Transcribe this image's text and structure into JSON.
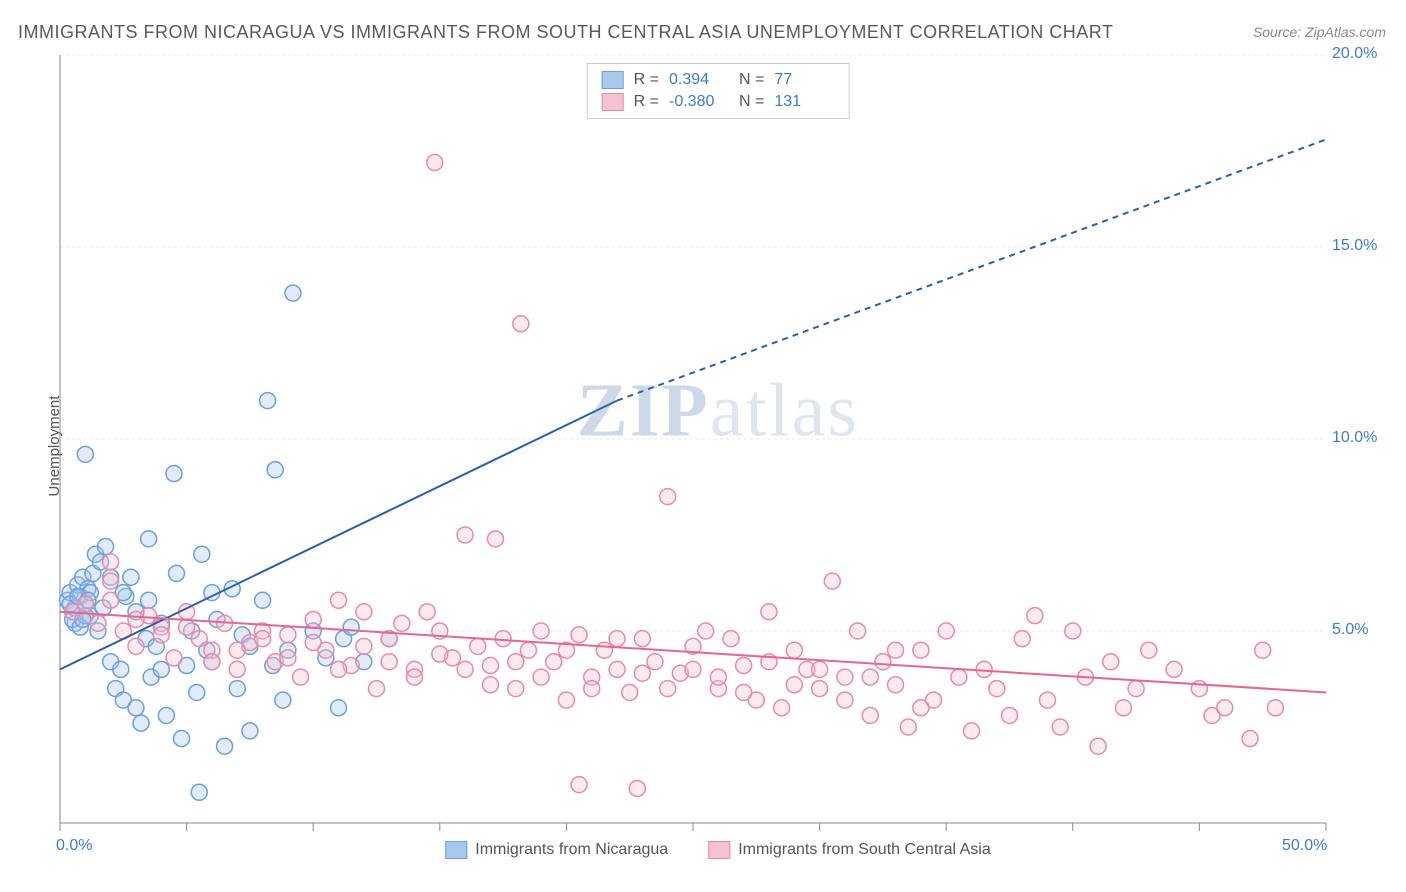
{
  "title": "IMMIGRANTS FROM NICARAGUA VS IMMIGRANTS FROM SOUTH CENTRAL ASIA UNEMPLOYMENT CORRELATION CHART",
  "source": "Source: ZipAtlas.com",
  "ylabel": "Unemployment",
  "watermark": {
    "bold": "ZIP",
    "light": "atlas"
  },
  "chart": {
    "type": "scatter",
    "xlim": [
      0,
      50
    ],
    "ylim": [
      0,
      20
    ],
    "xtick_positions": [
      0,
      5,
      10,
      15,
      20,
      25,
      30,
      35,
      40,
      45,
      50
    ],
    "ytick_positions": [
      0,
      5,
      10,
      15,
      20
    ],
    "xtick_labels_shown": {
      "0": "0.0%",
      "50": "50.0%"
    },
    "ytick_labels_shown": {
      "5": "5.0%",
      "10": "10.0%",
      "15": "15.0%",
      "20": "20.0%"
    },
    "axis_color": "#888888",
    "grid_color": "#e8e8e8",
    "grid_dash": "3,3",
    "background_color": "#ffffff",
    "tick_label_color": "#3d7cc9",
    "marker_radius": 8,
    "marker_stroke_width": 1.5,
    "marker_fill_opacity": 0.35
  },
  "series": [
    {
      "name": "Immigrants from Nicaragua",
      "color_fill": "#a8c8ec",
      "color_stroke": "#6ca0dc",
      "legend_R": "0.394",
      "legend_N": "77",
      "regression": {
        "x1": 0,
        "y1": 4.0,
        "x2_solid": 22,
        "y2_solid": 11.0,
        "x2_dashed": 50,
        "y2_dashed": 17.8,
        "stroke": "#2c5fa5",
        "stroke_width": 2
      },
      "points": [
        [
          0.3,
          5.8
        ],
        [
          0.4,
          6.0
        ],
        [
          0.5,
          5.5
        ],
        [
          0.6,
          5.2
        ],
        [
          0.7,
          6.2
        ],
        [
          0.8,
          5.9
        ],
        [
          0.9,
          6.4
        ],
        [
          1.0,
          5.7
        ],
        [
          1.1,
          6.1
        ],
        [
          1.2,
          5.4
        ],
        [
          1.3,
          6.5
        ],
        [
          1.4,
          7.0
        ],
        [
          1.5,
          5.0
        ],
        [
          1.6,
          6.8
        ],
        [
          1.8,
          7.2
        ],
        [
          1.0,
          9.6
        ],
        [
          2.0,
          4.2
        ],
        [
          2.2,
          3.5
        ],
        [
          2.4,
          4.0
        ],
        [
          2.5,
          3.2
        ],
        [
          2.6,
          5.9
        ],
        [
          2.8,
          6.4
        ],
        [
          3.0,
          3.0
        ],
        [
          3.2,
          2.6
        ],
        [
          3.4,
          4.8
        ],
        [
          3.5,
          7.4
        ],
        [
          3.6,
          3.8
        ],
        [
          3.8,
          4.6
        ],
        [
          4.0,
          5.2
        ],
        [
          4.2,
          2.8
        ],
        [
          4.5,
          9.1
        ],
        [
          4.6,
          6.5
        ],
        [
          4.8,
          2.2
        ],
        [
          5.0,
          4.1
        ],
        [
          5.2,
          5.0
        ],
        [
          5.4,
          3.4
        ],
        [
          5.6,
          7.0
        ],
        [
          5.8,
          4.5
        ],
        [
          5.5,
          0.8
        ],
        [
          6.0,
          4.2
        ],
        [
          6.2,
          5.3
        ],
        [
          6.5,
          2.0
        ],
        [
          6.8,
          6.1
        ],
        [
          7.0,
          3.5
        ],
        [
          7.2,
          4.9
        ],
        [
          7.5,
          2.4
        ],
        [
          8.0,
          5.8
        ],
        [
          8.2,
          11.0
        ],
        [
          8.4,
          4.1
        ],
        [
          8.5,
          9.2
        ],
        [
          8.8,
          3.2
        ],
        [
          9.0,
          4.5
        ],
        [
          9.2,
          13.8
        ],
        [
          10.0,
          5.0
        ],
        [
          10.5,
          4.3
        ],
        [
          11.0,
          3.0
        ],
        [
          11.2,
          4.8
        ],
        [
          12.0,
          4.2
        ],
        [
          2.0,
          6.4
        ],
        [
          2.5,
          6.0
        ],
        [
          3.0,
          5.5
        ],
        [
          3.5,
          5.8
        ],
        [
          1.7,
          5.6
        ],
        [
          0.5,
          5.3
        ],
        [
          0.6,
          5.6
        ],
        [
          0.8,
          5.1
        ],
        [
          1.0,
          5.4
        ],
        [
          1.2,
          6.0
        ],
        [
          11.5,
          5.1
        ],
        [
          0.4,
          5.7
        ],
        [
          0.7,
          5.9
        ],
        [
          13.0,
          4.8
        ],
        [
          4.0,
          4.0
        ],
        [
          6.0,
          6.0
        ],
        [
          7.5,
          4.6
        ],
        [
          0.9,
          5.3
        ],
        [
          1.1,
          5.8
        ]
      ]
    },
    {
      "name": "Immigrants from South Central Asia",
      "color_fill": "#f5c2d1",
      "color_stroke": "#e88ba8",
      "legend_R": "-0.380",
      "legend_N": "131",
      "regression": {
        "x1": 0,
        "y1": 5.5,
        "x2_solid": 50,
        "y2_solid": 3.4,
        "stroke": "#e56690",
        "stroke_width": 2
      },
      "points": [
        [
          0.5,
          5.5
        ],
        [
          1.0,
          5.7
        ],
        [
          1.5,
          5.2
        ],
        [
          2.0,
          6.3
        ],
        [
          2.5,
          5.0
        ],
        [
          3.0,
          4.6
        ],
        [
          3.5,
          5.4
        ],
        [
          4.0,
          5.1
        ],
        [
          4.5,
          4.3
        ],
        [
          5.0,
          5.5
        ],
        [
          5.5,
          4.8
        ],
        [
          6.0,
          4.5
        ],
        [
          6.5,
          5.2
        ],
        [
          7.0,
          4.0
        ],
        [
          7.5,
          4.7
        ],
        [
          8.0,
          5.0
        ],
        [
          8.5,
          4.2
        ],
        [
          9.0,
          4.9
        ],
        [
          9.5,
          3.8
        ],
        [
          10.0,
          5.3
        ],
        [
          10.5,
          4.5
        ],
        [
          11.0,
          5.8
        ],
        [
          11.5,
          4.1
        ],
        [
          12.0,
          5.5
        ],
        [
          12.5,
          3.5
        ],
        [
          13.0,
          4.8
        ],
        [
          13.5,
          5.2
        ],
        [
          14.0,
          4.0
        ],
        [
          14.5,
          5.5
        ],
        [
          15.0,
          5.0
        ],
        [
          15.5,
          4.3
        ],
        [
          16.0,
          7.5
        ],
        [
          16.5,
          4.6
        ],
        [
          17.0,
          4.1
        ],
        [
          17.2,
          7.4
        ],
        [
          17.5,
          4.8
        ],
        [
          18.0,
          3.5
        ],
        [
          18.2,
          13.0
        ],
        [
          18.5,
          4.5
        ],
        [
          19.0,
          5.0
        ],
        [
          19.5,
          4.2
        ],
        [
          20.0,
          3.2
        ],
        [
          20.5,
          4.9
        ],
        [
          20.5,
          1.0
        ],
        [
          21.0,
          3.8
        ],
        [
          21.5,
          4.5
        ],
        [
          22.0,
          4.0
        ],
        [
          22.5,
          3.4
        ],
        [
          23.0,
          4.8
        ],
        [
          23.5,
          4.2
        ],
        [
          24.0,
          8.5
        ],
        [
          24.5,
          3.9
        ],
        [
          25.0,
          4.6
        ],
        [
          25.5,
          5.0
        ],
        [
          26.0,
          3.5
        ],
        [
          26.5,
          4.8
        ],
        [
          27.0,
          4.1
        ],
        [
          27.5,
          3.2
        ],
        [
          28.0,
          5.5
        ],
        [
          28.5,
          3.0
        ],
        [
          29.0,
          4.5
        ],
        [
          29.5,
          4.0
        ],
        [
          30.0,
          3.5
        ],
        [
          30.5,
          6.3
        ],
        [
          31.0,
          3.8
        ],
        [
          31.5,
          5.0
        ],
        [
          32.0,
          2.8
        ],
        [
          32.5,
          4.2
        ],
        [
          33.0,
          3.6
        ],
        [
          33.5,
          2.5
        ],
        [
          34.0,
          4.5
        ],
        [
          34.5,
          3.2
        ],
        [
          35.0,
          5.0
        ],
        [
          35.5,
          3.8
        ],
        [
          36.0,
          2.4
        ],
        [
          36.5,
          4.0
        ],
        [
          37.0,
          3.5
        ],
        [
          37.5,
          2.8
        ],
        [
          38.0,
          4.8
        ],
        [
          38.5,
          5.4
        ],
        [
          39.0,
          3.2
        ],
        [
          39.5,
          2.5
        ],
        [
          40.0,
          5.0
        ],
        [
          40.5,
          3.8
        ],
        [
          41.0,
          2.0
        ],
        [
          41.5,
          4.2
        ],
        [
          42.0,
          3.0
        ],
        [
          42.5,
          3.5
        ],
        [
          43.0,
          4.5
        ],
        [
          44.0,
          4.0
        ],
        [
          45.0,
          3.5
        ],
        [
          45.5,
          2.8
        ],
        [
          46.0,
          3.0
        ],
        [
          47.0,
          2.2
        ],
        [
          47.5,
          4.5
        ],
        [
          48.0,
          3.0
        ],
        [
          2.0,
          5.8
        ],
        [
          3.0,
          5.3
        ],
        [
          4.0,
          4.9
        ],
        [
          5.0,
          5.1
        ],
        [
          6.0,
          4.2
        ],
        [
          7.0,
          4.5
        ],
        [
          8.0,
          4.8
        ],
        [
          9.0,
          4.3
        ],
        [
          10.0,
          4.7
        ],
        [
          11.0,
          4.0
        ],
        [
          12.0,
          4.6
        ],
        [
          13.0,
          4.2
        ],
        [
          14.0,
          3.8
        ],
        [
          15.0,
          4.4
        ],
        [
          16.0,
          4.0
        ],
        [
          17.0,
          3.6
        ],
        [
          18.0,
          4.2
        ],
        [
          19.0,
          3.8
        ],
        [
          20.0,
          4.5
        ],
        [
          21.0,
          3.5
        ],
        [
          22.0,
          4.8
        ],
        [
          23.0,
          3.9
        ],
        [
          24.0,
          3.5
        ],
        [
          25.0,
          4.0
        ],
        [
          26.0,
          3.8
        ],
        [
          27.0,
          3.4
        ],
        [
          28.0,
          4.2
        ],
        [
          29.0,
          3.6
        ],
        [
          30.0,
          4.0
        ],
        [
          31.0,
          3.2
        ],
        [
          32.0,
          3.8
        ],
        [
          33.0,
          4.5
        ],
        [
          34.0,
          3.0
        ],
        [
          22.8,
          0.9
        ],
        [
          2.0,
          6.8
        ],
        [
          14.8,
          17.2
        ]
      ]
    }
  ],
  "legend_labels": {
    "R": "R =",
    "N": "N ="
  },
  "bottom_legend_label1": "Immigrants from Nicaragua",
  "bottom_legend_label2": "Immigrants from South Central Asia"
}
